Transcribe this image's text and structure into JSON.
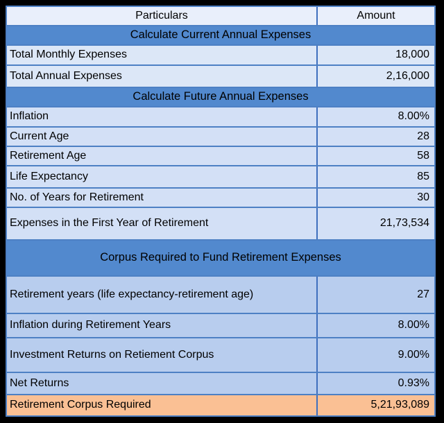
{
  "table": {
    "header": {
      "particulars": "Particulars",
      "amount": "Amount"
    },
    "rows": [
      {
        "type": "section",
        "label": "Calculate Current Annual Expenses"
      },
      {
        "type": "item",
        "label": "Total Monthly Expenses",
        "value": "18,000"
      },
      {
        "type": "item",
        "label": "Total Annual Expenses",
        "value": "2,16,000"
      },
      {
        "type": "section",
        "label": "Calculate Future Annual Expenses"
      },
      {
        "type": "item",
        "label": "Inflation",
        "value": "8.00%"
      },
      {
        "type": "item",
        "label": "Current Age",
        "value": "28"
      },
      {
        "type": "item",
        "label": "Retirement Age",
        "value": "58"
      },
      {
        "type": "item",
        "label": "Life Expectancy",
        "value": "85"
      },
      {
        "type": "item",
        "label": "No. of Years for Retirement",
        "value": "30"
      },
      {
        "type": "item",
        "label": "Expenses in the First Year of Retirement",
        "value": "21,73,534"
      },
      {
        "type": "section",
        "label": "Corpus Required to Fund Retirement Expenses"
      },
      {
        "type": "item",
        "label": "Retirement years (life expectancy-retirement age)",
        "value": "27"
      },
      {
        "type": "item",
        "label": "Inflation during Retirement Years",
        "value": "8.00%"
      },
      {
        "type": "item",
        "label": "Investment Returns on Retiement Corpus",
        "value": "9.00%"
      },
      {
        "type": "item",
        "label": "Net Returns",
        "value": "0.93%"
      },
      {
        "type": "result",
        "label": "Retirement Corpus Required",
        "value": "5,21,93,089"
      }
    ]
  },
  "colors": {
    "outer_border": "#000000",
    "grid_line": "#4d80c4",
    "column_divider": "#3e6fbe",
    "header_row_bg": "#e9effb",
    "section_header_bg": "#5289ce",
    "row_bg_lightest": "#dce7f7",
    "row_bg_light": "#d3e0f6",
    "row_bg_medium": "#b8cdee",
    "result_row_bg": "#fac094",
    "text": "#000000"
  },
  "chart_data": {
    "type": "table",
    "title": "Retirement Corpus Calculation",
    "columns": [
      "Particulars",
      "Amount"
    ],
    "sections": [
      {
        "section": "Calculate Current Annual Expenses",
        "rows": [
          [
            "Total Monthly Expenses",
            "18,000"
          ],
          [
            "Total Annual Expenses",
            "2,16,000"
          ]
        ]
      },
      {
        "section": "Calculate Future Annual Expenses",
        "rows": [
          [
            "Inflation",
            "8.00%"
          ],
          [
            "Current Age",
            "28"
          ],
          [
            "Retirement Age",
            "58"
          ],
          [
            "Life Expectancy",
            "85"
          ],
          [
            "No. of Years for Retirement",
            "30"
          ],
          [
            "Expenses in the First Year of Retirement",
            "21,73,534"
          ]
        ]
      },
      {
        "section": "Corpus Required to Fund Retirement Expenses",
        "rows": [
          [
            "Retirement years (life expectancy-retirement age)",
            "27"
          ],
          [
            "Inflation during Retirement Years",
            "8.00%"
          ],
          [
            "Investment Returns on Retiement Corpus",
            "9.00%"
          ],
          [
            "Net Returns",
            "0.93%"
          ],
          [
            "Retirement Corpus Required",
            "5,21,93,089"
          ]
        ]
      }
    ],
    "highlighted_row": [
      "Retirement Corpus Required",
      "5,21,93,089"
    ]
  }
}
